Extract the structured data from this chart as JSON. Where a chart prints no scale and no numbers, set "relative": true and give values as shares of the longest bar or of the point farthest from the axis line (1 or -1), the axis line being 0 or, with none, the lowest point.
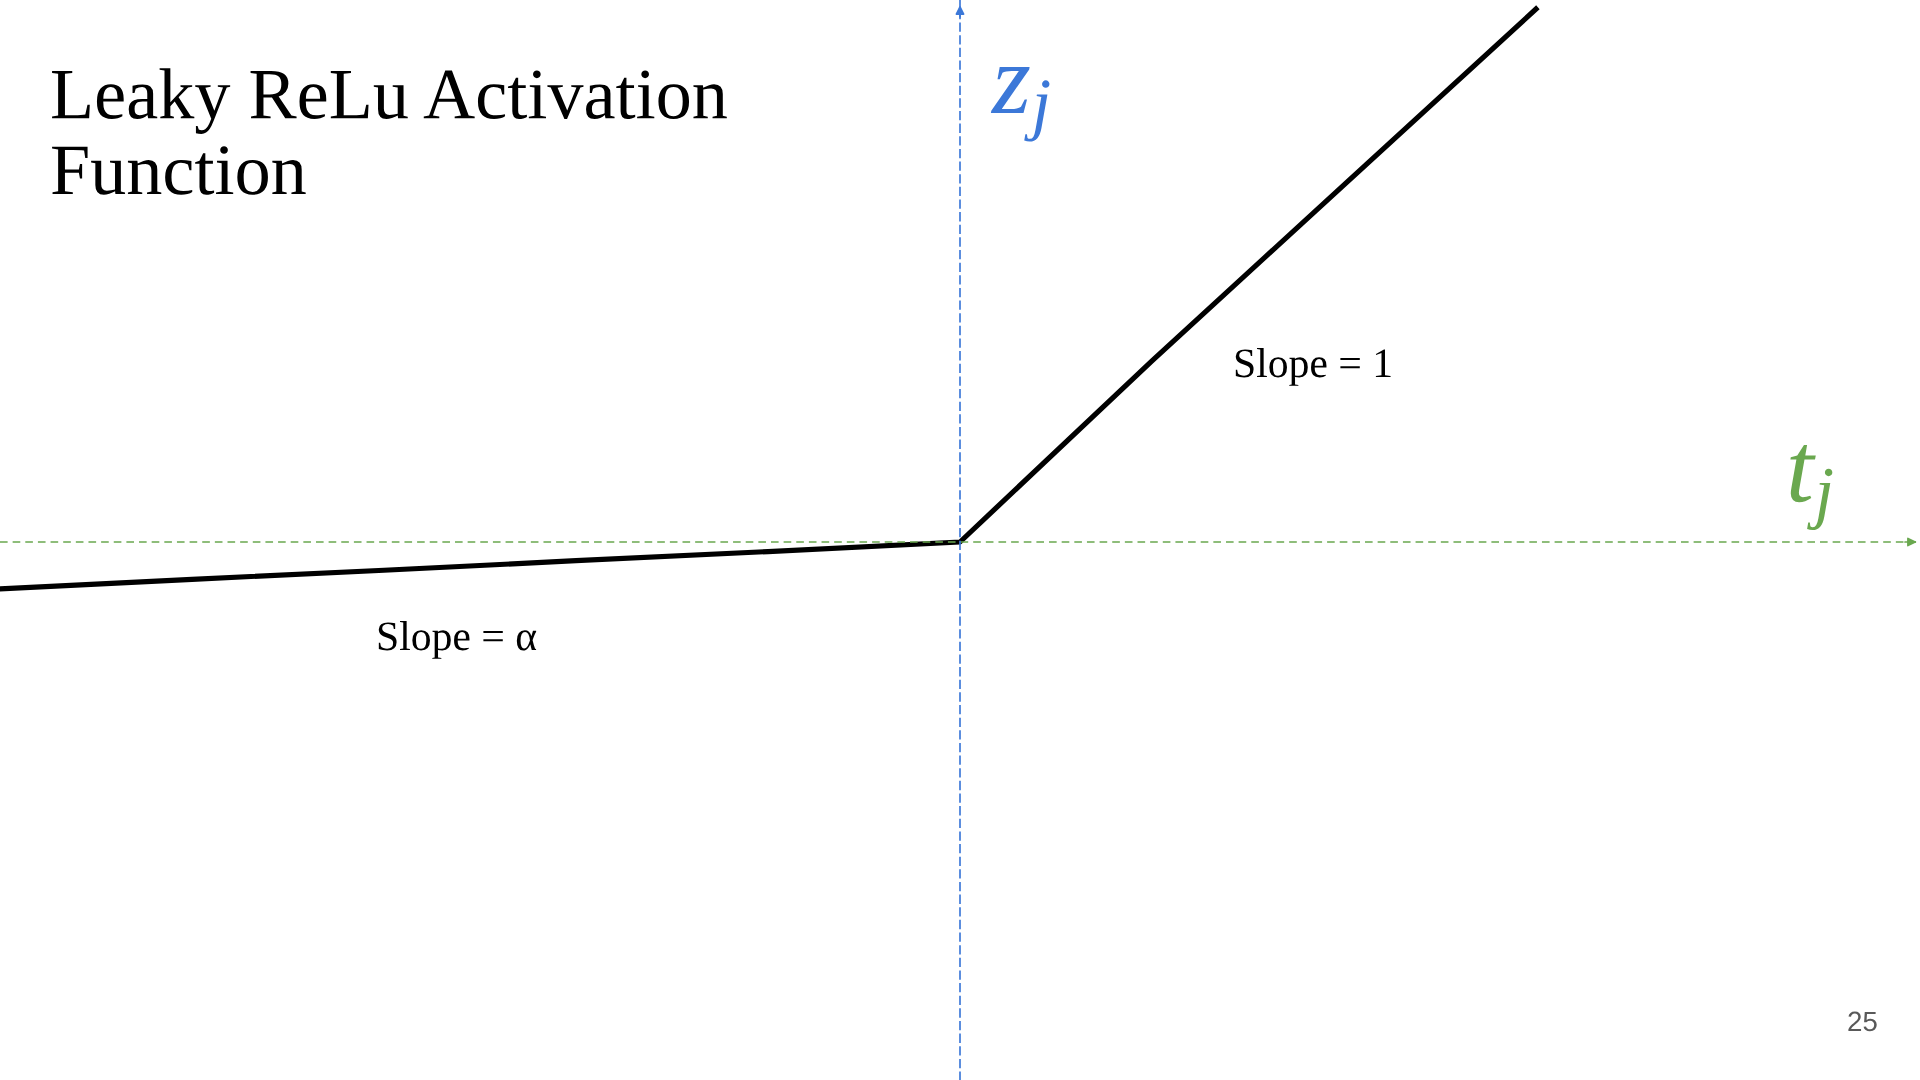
{
  "chart_data": {
    "type": "line",
    "title": "Leaky ReLu Activation Function",
    "xlabel": "t$_{j}$",
    "ylabel": "z$_{j}$",
    "categories": [
      null,
      null,
      null,
      null,
      null,
      null,
      null,
      null,
      null
    ],
    "series": [
      {
        "color": "#000000",
        "values": [
          -0.088,
          -0.07,
          -0.053,
          -0.035,
          -0.018,
          0,
          0.34,
          0.67,
          1
        ]
      }
    ],
    "relative": true,
    "ref_lines": [
      {
        "axis": "y",
        "value": 0,
        "color": "#6aa84f",
        "line_style": "dashed"
      }
    ],
    "annotations": [
      "Slope = 1",
      "Slope = α",
      "25"
    ]
  }
}
